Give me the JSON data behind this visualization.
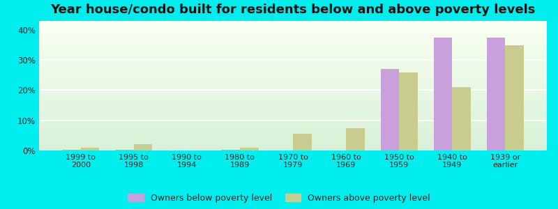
{
  "title": "Year house/condo built for residents below and above poverty levels",
  "categories": [
    "1999 to\n2000",
    "1995 to\n1998",
    "1990 to\n1994",
    "1980 to\n1989",
    "1970 to\n1979",
    "1960 to\n1969",
    "1950 to\n1959",
    "1940 to\n1949",
    "1939 or\nearlier"
  ],
  "below_poverty": [
    0.3,
    0.3,
    0.0,
    0.3,
    0.0,
    0.0,
    27.0,
    37.5,
    37.5
  ],
  "above_poverty": [
    1.0,
    2.0,
    0.0,
    1.0,
    5.5,
    7.5,
    26.0,
    21.0,
    35.0
  ],
  "ylim": [
    0,
    43
  ],
  "yticks": [
    0,
    10,
    20,
    30,
    40
  ],
  "ytick_labels": [
    "0%",
    "10%",
    "20%",
    "30%",
    "40%"
  ],
  "bar_color_below": "#c9a0dc",
  "bar_color_above": "#c8cc8e",
  "background_outer": "#00EEEE",
  "legend_below": "Owners below poverty level",
  "legend_above": "Owners above poverty level",
  "title_fontsize": 13,
  "bar_width": 0.35
}
